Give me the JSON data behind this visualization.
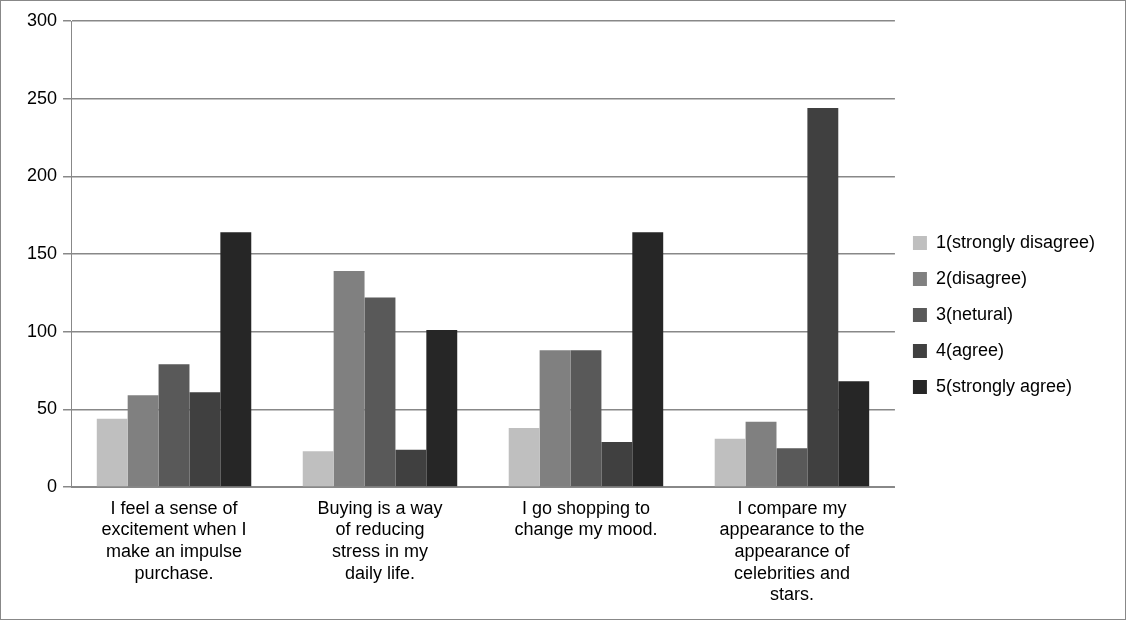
{
  "chart_data": {
    "type": "bar",
    "categories": [
      "I feel a sense of excitement when I make an impulse purchase.",
      "Buying is a way of reducing stress in my daily life.",
      "I go shopping to change my mood.",
      "I compare my appearance to the appearance of celebrities and stars."
    ],
    "series": [
      {
        "name": "1(strongly disagree)",
        "color": "#bfbfbf",
        "values": [
          44,
          23,
          38,
          31
        ]
      },
      {
        "name": "2(disagree)",
        "color": "#808080",
        "values": [
          59,
          139,
          88,
          42
        ]
      },
      {
        "name": "3(netural)",
        "color": "#595959",
        "values": [
          79,
          122,
          88,
          25
        ]
      },
      {
        "name": "4(agree)",
        "color": "#404040",
        "values": [
          61,
          24,
          29,
          244
        ]
      },
      {
        "name": "5(strongly agree)",
        "color": "#262626",
        "values": [
          164,
          101,
          164,
          68
        ]
      }
    ],
    "ylim": [
      0,
      300
    ],
    "yticks": [
      0,
      50,
      100,
      150,
      200,
      250,
      300
    ],
    "grid": "y",
    "legend": "right"
  }
}
